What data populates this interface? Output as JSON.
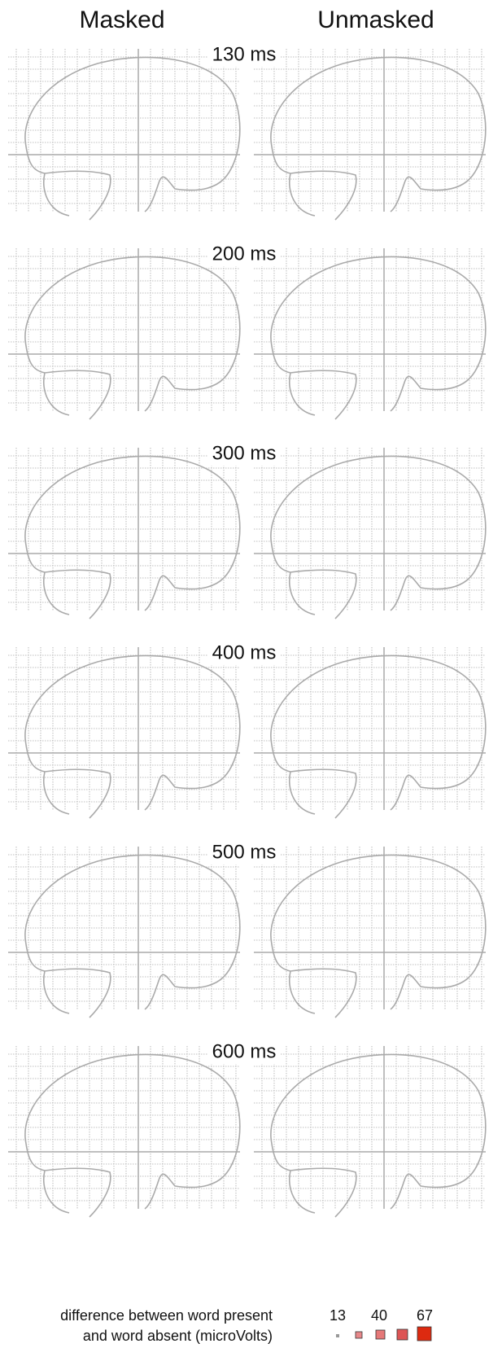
{
  "headers": [
    "Masked",
    "Unmasked"
  ],
  "panels": [
    {
      "time": "130 ms"
    },
    {
      "time": "200 ms"
    },
    {
      "time": "300 ms"
    },
    {
      "time": "400 ms"
    },
    {
      "time": "500 ms"
    },
    {
      "time": "600 ms"
    }
  ],
  "legend": {
    "text": [
      "difference between word present",
      "and word absent (microVolts)"
    ],
    "values": [
      13,
      40,
      67
    ]
  }
}
